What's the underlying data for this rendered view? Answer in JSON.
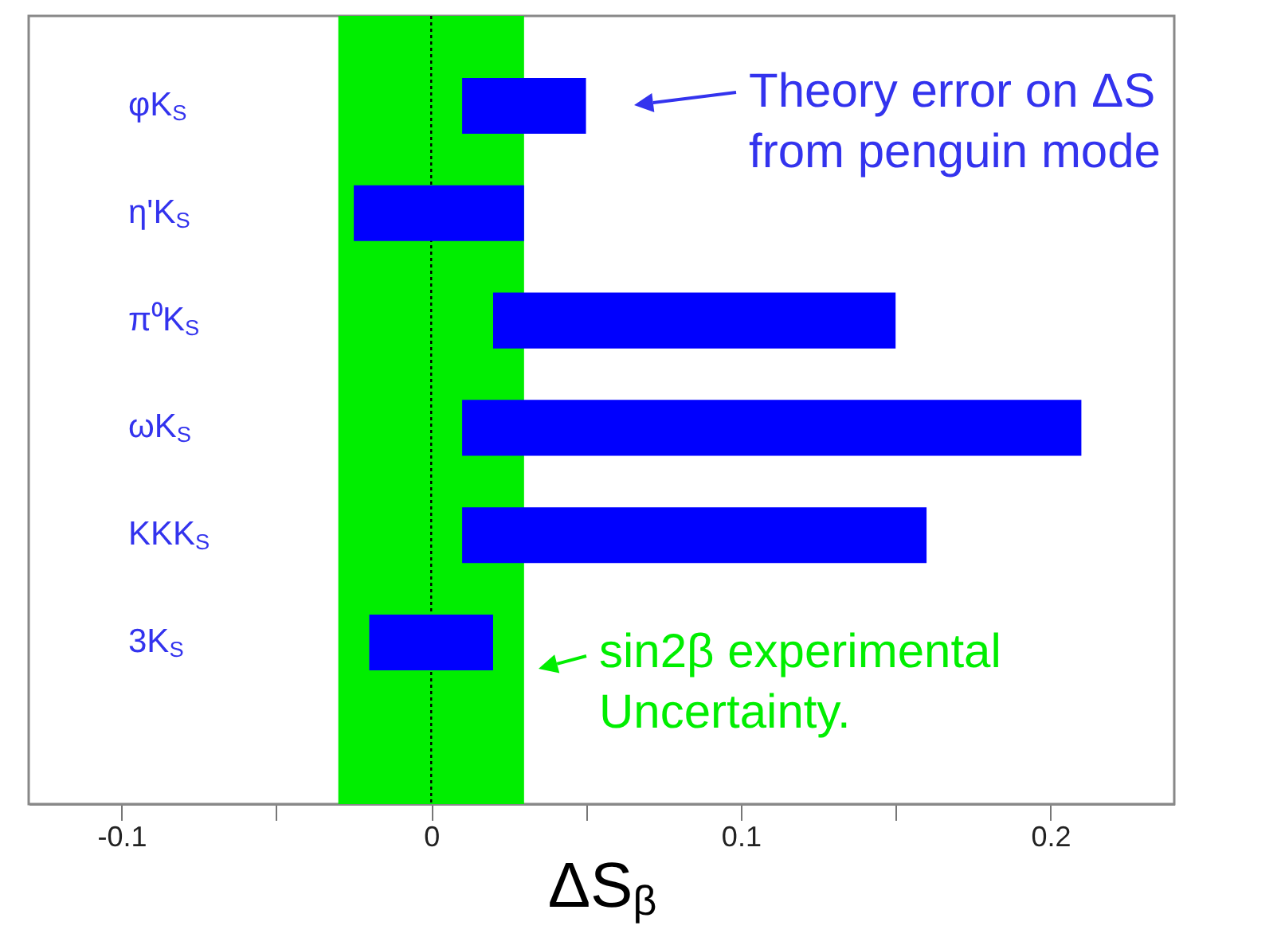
{
  "chart_data": {
    "type": "bar",
    "orientation": "horizontal",
    "xlabel": "ΔS$_{β}$",
    "categories": [
      "φK$_{S}$",
      "η'K$_{S}$",
      "π⁰K$_{S}$",
      "ωK$_{S}$",
      "KKK$_{S}$",
      "3K$_{S}$"
    ],
    "base": [
      0.01,
      -0.025,
      0.02,
      0.01,
      0.01,
      -0.02
    ],
    "values": [
      0.04,
      0.055,
      0.13,
      0.2,
      0.15,
      0.04
    ],
    "color": "#0000fe",
    "xlim": [
      -0.13,
      0.24
    ],
    "xticks": [
      -0.1,
      {
        "value": -0.05,
        "label": null
      },
      0,
      {
        "value": 0.05,
        "label": null
      },
      0.1,
      {
        "value": 0.15,
        "label": null
      },
      0.2
    ],
    "ref_lines": [
      {
        "axis": "x",
        "value": 0,
        "color": "#000000",
        "line_style": "dotted"
      }
    ],
    "bands": [
      {
        "axis": "x",
        "from": -0.03,
        "to": 0.03,
        "color": "#00ee00"
      }
    ],
    "annotations": [
      "Theory error on ΔS from penguin mode",
      "sin2β experimental Uncertainty."
    ]
  }
}
